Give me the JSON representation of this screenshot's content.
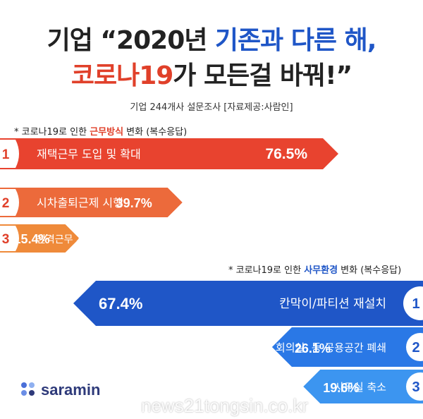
{
  "title": {
    "line1_prefix": "기업 “2020년 ",
    "line1_highlight": "기존과 다른 해,",
    "line2_highlight": "코로나19",
    "line2_suffix": "가 모든걸 바꿔!”"
  },
  "subtitle": "기업 244개사 설문조사 [자료제공:사람인]",
  "note_top": {
    "prefix": "* 코로나19로 인한 ",
    "highlight": "근무방식",
    "suffix": " 변화 (복수응답)"
  },
  "note_bottom": {
    "prefix": "* 코로나19로 인한 ",
    "highlight": "사무환경",
    "suffix": " 변화 (복수응답)"
  },
  "logo": "saramin",
  "watermark": "news21tongsin.co.kr",
  "colors": {
    "work_bars": [
      "#e8432f",
      "#ec6a3b",
      "#ef8a3a"
    ],
    "office_bars": [
      "#1f56c7",
      "#2a78e6",
      "#3c95f0"
    ],
    "rank_red": "#e0402a",
    "rank_blue": "#1f56c7"
  },
  "chart_data": [
    {
      "type": "bar",
      "orientation": "horizontal",
      "title": "코로나19로 인한 근무방식 변화 (복수응답)",
      "unit": "%",
      "ranks": [
        "1",
        "2",
        "3"
      ],
      "categories": [
        "재택근무 도입 및 확대",
        "시차출퇴근제 시행",
        "원격근무 시스템 도입"
      ],
      "values": [
        76.5,
        39.7,
        15.4
      ],
      "value_labels": [
        "76.5%",
        "39.7%",
        "15.4%"
      ]
    },
    {
      "type": "bar",
      "orientation": "horizontal",
      "title": "코로나19로 인한 사무환경 변화 (복수응답)",
      "unit": "%",
      "ranks": [
        "1",
        "2",
        "3"
      ],
      "categories": [
        "칸막이/파티션 재설치",
        "회의실, 등 공용공간 폐쇄",
        "사무실 축소"
      ],
      "values": [
        67.4,
        26.1,
        19.6
      ],
      "value_labels": [
        "67.4%",
        "26.1%",
        "19.6%"
      ]
    }
  ]
}
